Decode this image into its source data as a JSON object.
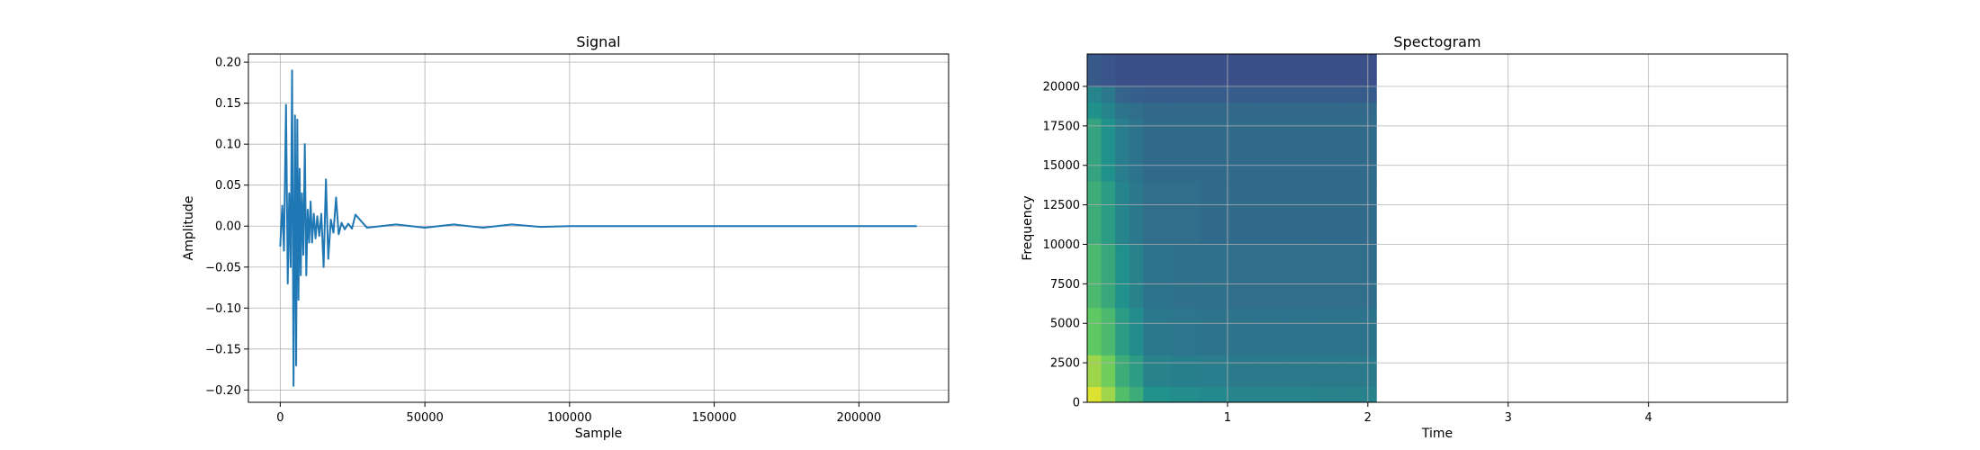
{
  "chart_data": [
    {
      "type": "line",
      "title": "Signal",
      "xlabel": "Sample",
      "ylabel": "Amplitude",
      "xlim": [
        -11000,
        231000
      ],
      "ylim": [
        -0.215,
        0.21
      ],
      "xticks": [
        0,
        50000,
        100000,
        150000,
        200000
      ],
      "xtick_labels": [
        "0",
        "50000",
        "100000",
        "150000",
        "200000"
      ],
      "yticks": [
        -0.2,
        -0.15,
        -0.1,
        -0.05,
        0.0,
        0.05,
        0.1,
        0.15,
        0.2
      ],
      "ytick_labels": [
        "−0.20",
        "−0.15",
        "−0.10",
        "−0.05",
        "0.00",
        "0.05",
        "0.10",
        "0.15",
        "0.20"
      ],
      "grid": true,
      "color": "#1f77b4",
      "series": [
        {
          "x": [
            0,
            700,
            1300,
            2000,
            2600,
            3100,
            3600,
            4100,
            4600,
            5100,
            5500,
            5900,
            6300,
            6700,
            7100,
            7500,
            8000,
            8500,
            9000,
            9500,
            10000,
            10500,
            11000,
            11600,
            12200,
            12800,
            13500,
            14200,
            15000,
            15800,
            16600,
            17500,
            18400,
            19300,
            20200,
            21200,
            22300,
            23500,
            24800,
            26000,
            30000,
            40000,
            50000,
            60000,
            70000,
            80000,
            90000,
            100000,
            150000,
            220000
          ],
          "y": [
            -0.025,
            0.025,
            -0.03,
            0.148,
            -0.07,
            0.04,
            -0.05,
            0.19,
            -0.195,
            0.135,
            -0.17,
            0.13,
            -0.09,
            0.07,
            -0.06,
            0.04,
            -0.035,
            0.1,
            -0.06,
            0.02,
            -0.02,
            0.03,
            -0.02,
            0.015,
            -0.015,
            0.012,
            -0.012,
            0.015,
            -0.05,
            0.057,
            -0.04,
            0.008,
            -0.008,
            0.035,
            -0.01,
            0.004,
            -0.004,
            0.003,
            -0.003,
            0.014,
            -0.002,
            0.002,
            -0.002,
            0.002,
            -0.002,
            0.002,
            -0.001,
            0.0,
            0.0,
            0.0
          ]
        }
      ]
    },
    {
      "type": "heatmap",
      "title": "Spectogram",
      "xlabel": "Time",
      "ylabel": "Frequency",
      "xlim": [
        0,
        4.99
      ],
      "ylim": [
        0,
        22050
      ],
      "xticks": [
        1,
        2,
        3,
        4
      ],
      "xtick_labels": [
        "1",
        "2",
        "3",
        "4"
      ],
      "yticks": [
        0,
        2500,
        5000,
        7500,
        10000,
        12500,
        15000,
        17500,
        20000
      ],
      "ytick_labels": [
        "0",
        "2500",
        "5000",
        "7500",
        "10000",
        "12500",
        "15000",
        "17500",
        "20000"
      ],
      "grid": true,
      "colormap": "viridis",
      "data_time_range": [
        0,
        2.06
      ],
      "data_freq_range": [
        0,
        22050
      ],
      "description_levels": {
        "time_bins": [
          0.0,
          0.1,
          0.2,
          0.3,
          0.4,
          0.6,
          0.8,
          1.0,
          1.2,
          1.4,
          1.6,
          1.8,
          2.06
        ],
        "freq_bins": [
          0,
          1000,
          3000,
          6000,
          10000,
          14000,
          18000,
          19000,
          20000,
          22050
        ],
        "intensity": [
          [
            0.95,
            0.85,
            0.7,
            0.62,
            0.5,
            0.48,
            0.47,
            0.45,
            0.45,
            0.45,
            0.44,
            0.44
          ],
          [
            0.85,
            0.78,
            0.62,
            0.55,
            0.44,
            0.43,
            0.42,
            0.41,
            0.41,
            0.41,
            0.41,
            0.41
          ],
          [
            0.75,
            0.68,
            0.55,
            0.48,
            0.4,
            0.39,
            0.38,
            0.38,
            0.38,
            0.38,
            0.38,
            0.38
          ],
          [
            0.68,
            0.6,
            0.5,
            0.44,
            0.38,
            0.37,
            0.37,
            0.36,
            0.36,
            0.36,
            0.36,
            0.36
          ],
          [
            0.62,
            0.55,
            0.45,
            0.4,
            0.36,
            0.36,
            0.35,
            0.35,
            0.35,
            0.35,
            0.35,
            0.35
          ],
          [
            0.58,
            0.5,
            0.42,
            0.38,
            0.35,
            0.35,
            0.35,
            0.35,
            0.35,
            0.35,
            0.35,
            0.35
          ],
          [
            0.5,
            0.45,
            0.38,
            0.36,
            0.34,
            0.34,
            0.34,
            0.34,
            0.34,
            0.34,
            0.34,
            0.34
          ],
          [
            0.45,
            0.4,
            0.32,
            0.3,
            0.29,
            0.29,
            0.29,
            0.29,
            0.29,
            0.29,
            0.29,
            0.29
          ],
          [
            0.28,
            0.26,
            0.24,
            0.24,
            0.24,
            0.24,
            0.24,
            0.24,
            0.24,
            0.24,
            0.24,
            0.24
          ]
        ]
      }
    }
  ]
}
